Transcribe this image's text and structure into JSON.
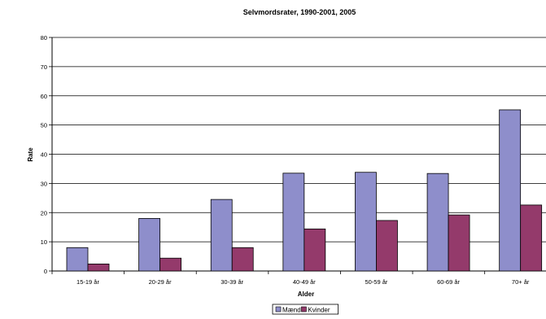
{
  "chart_data": {
    "type": "bar",
    "title": "Selvmordsrater, 1990-2001, 2005",
    "xlabel": "Alder",
    "ylabel": "Rate",
    "ylim": [
      0,
      80
    ],
    "yticks": [
      0,
      10,
      20,
      30,
      40,
      50,
      60,
      70,
      80
    ],
    "grid": true,
    "legend_position": "bottom",
    "categories": [
      "15-19 år",
      "20-29 år",
      "30-39 år",
      "40-49 år",
      "50-59 år",
      "60-69 år",
      "70+ år"
    ],
    "series": [
      {
        "name": "Mænd",
        "color": "#8e8ecb",
        "values": [
          8.0,
          18.0,
          24.5,
          33.5,
          33.8,
          33.4,
          55.2
        ]
      },
      {
        "name": "Kvinder",
        "color": "#943a6b",
        "values": [
          2.4,
          4.4,
          8.0,
          14.4,
          17.3,
          19.2,
          22.6
        ]
      }
    ]
  }
}
